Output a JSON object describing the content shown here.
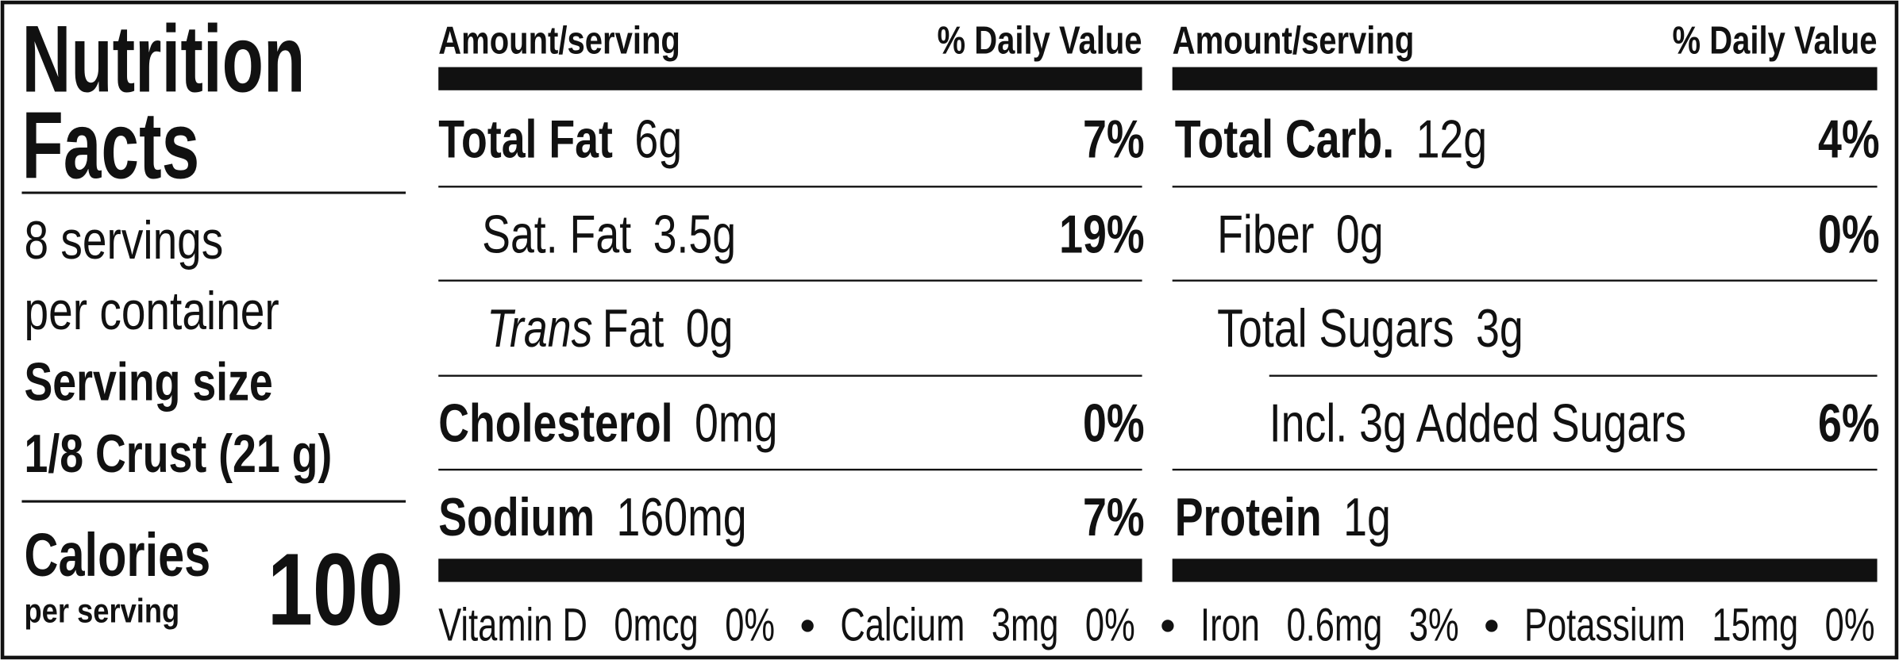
{
  "title_lines": [
    "Nutrition",
    "Facts"
  ],
  "servings_lines": [
    "8 servings",
    "per container"
  ],
  "serving_size_label": "Serving size",
  "serving_size": "1/8 Crust (21 g)",
  "calories_label": "Calories",
  "calories_sub": "per serving",
  "calories": "100",
  "columns": [
    {
      "amount_header": "Amount/serving",
      "dv_header": "% Daily Value",
      "rows": [
        {
          "name": "Total Fat",
          "amount": "6g",
          "dv": "7%"
        },
        {
          "name": "Sat. Fat",
          "amount": "3.5g",
          "dv": "19%"
        },
        {
          "name_italic": "Trans",
          "name": "Fat",
          "amount": "0g"
        },
        {
          "name": "Cholesterol",
          "amount": "0mg",
          "dv": "0%"
        },
        {
          "name": "Sodium",
          "amount": "160mg",
          "dv": "7%"
        }
      ]
    },
    {
      "amount_header": "Amount/serving",
      "dv_header": "% Daily Value",
      "rows": [
        {
          "name": "Total Carb.",
          "amount": "12g",
          "dv": "4%"
        },
        {
          "name": "Fiber",
          "amount": "0g",
          "dv": "0%"
        },
        {
          "name": "Total Sugars",
          "amount": "3g"
        },
        {
          "name": "Incl. 3g Added Sugars",
          "dv": "6%"
        },
        {
          "name": "Protein",
          "amount": "1g"
        }
      ]
    }
  ],
  "vitamins": [
    {
      "name": "Vitamin D",
      "amount": "0mcg",
      "dv": "0%"
    },
    {
      "name": "Calcium",
      "amount": "3mg",
      "dv": "0%"
    },
    {
      "name": "Iron",
      "amount": "0.6mg",
      "dv": "3%"
    },
    {
      "name": "Potassium",
      "amount": "15mg",
      "dv": "0%"
    }
  ]
}
